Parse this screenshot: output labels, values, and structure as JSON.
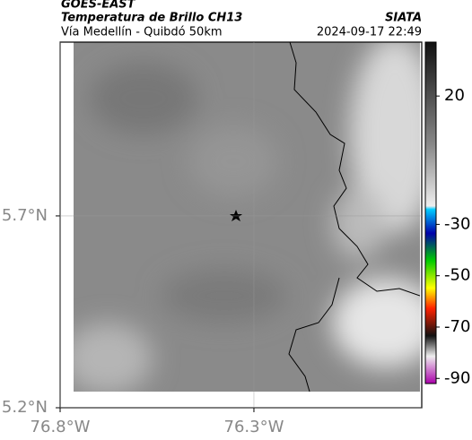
{
  "header": {
    "title": "GOES-EAST",
    "subtitle": "Temperatura de Brillo CH13",
    "region": "Vía Medellín - Quibdó 50km",
    "agency": "SIATA",
    "datetime": "2024-09-17 22:49"
  },
  "map": {
    "lat_range": [
      5.2,
      6.153
    ],
    "lon_range": [
      -76.8,
      -75.867
    ],
    "lat_ticks": [
      {
        "value": 5.7,
        "label": "5.7°N"
      },
      {
        "value": 5.2,
        "label": "5.2°N"
      }
    ],
    "lon_ticks": [
      {
        "value": -76.8,
        "label": "76.8°W"
      },
      {
        "value": -76.3,
        "label": "76.3°W"
      }
    ],
    "colorbar": {
      "range": [
        -92,
        41
      ],
      "ticks": [
        20,
        -30,
        -50,
        -70,
        -90
      ]
    }
  }
}
